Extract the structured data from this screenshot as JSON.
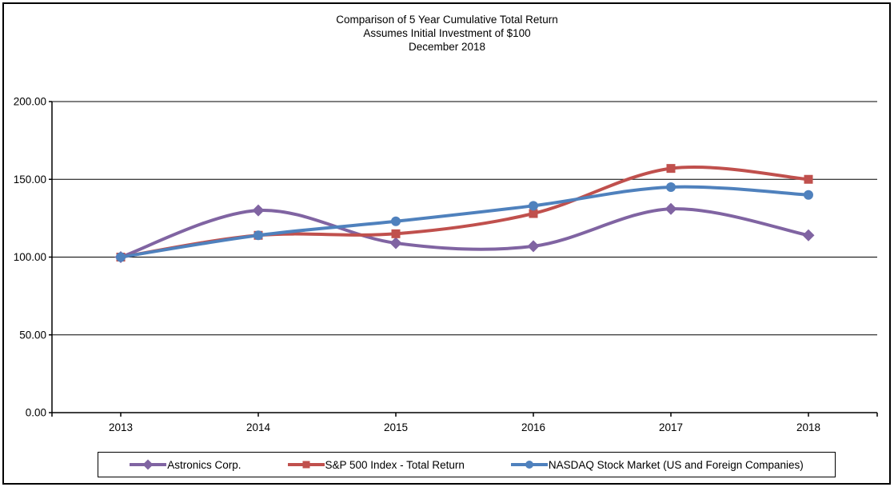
{
  "chart_data": {
    "type": "line",
    "title": "Comparison of 5 Year Cumulative Total Return",
    "subtitle": "Assumes Initial Investment of $100",
    "date_line": "December 2018",
    "categories": [
      "2013",
      "2014",
      "2015",
      "2016",
      "2017",
      "2018"
    ],
    "series": [
      {
        "name": "Astronics Corp.",
        "color": "#8064A2",
        "marker": "diamond",
        "values": [
          100,
          130,
          109,
          107,
          131,
          114
        ]
      },
      {
        "name": "S&P 500 Index - Total Return",
        "color": "#C0504D",
        "marker": "square",
        "values": [
          100,
          114,
          115,
          128,
          157,
          150
        ]
      },
      {
        "name": "NASDAQ Stock Market (US and Foreign Companies)",
        "color": "#4F81BD",
        "marker": "circle",
        "values": [
          100,
          114,
          123,
          133,
          145,
          140
        ]
      }
    ],
    "ylim": [
      0,
      200
    ],
    "ytick_step": 50,
    "ytick_labels": [
      "0.00",
      "50.00",
      "100.00",
      "150.00",
      "200.00"
    ],
    "grid": true,
    "smooth": true,
    "legend_position": "bottom",
    "axis_color": "#000000",
    "background_color": "#ffffff"
  }
}
